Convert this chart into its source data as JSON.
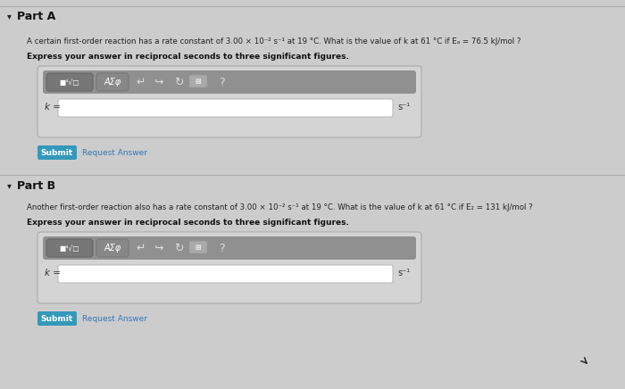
{
  "bg_color": "#c8c8c8",
  "white": "#ffffff",
  "input_box_bg": "#d8d8d8",
  "toolbar_bg": "#888888",
  "toolbar_left_bg": "#777777",
  "toolbar_asephi_bg": "#888888",
  "blue_button": "#3399bb",
  "part_a_label": "Part A",
  "part_b_label": "Part B",
  "part_a_question": "A certain first-order reaction has a rate constant of 3.00 × 10⁻² s⁻¹ at 19 °C. What is the value of k at 61 °C if Eₐ = 76.5 kJ/mol ?",
  "part_b_question": "Another first-order reaction also has a rate constant of 3.00 × 10⁻² s⁻¹ at 19 °C. What is the value of k at 61 °C if E₂ = 131 kJ/mol ?",
  "express_label": "Express your answer in reciprocal seconds to three significant figures.",
  "k_label": "k =",
  "s_label": "s⁻¹",
  "submit_label": "Submit",
  "request_label": "Request Answer",
  "triangle_marker": "▾",
  "toolbar_icon1": "■¹√□",
  "toolbar_icon2": "AΣφ",
  "arrow_back": "↵",
  "arrow_fwd": "↪",
  "refresh": "↻",
  "question_mark": "?"
}
